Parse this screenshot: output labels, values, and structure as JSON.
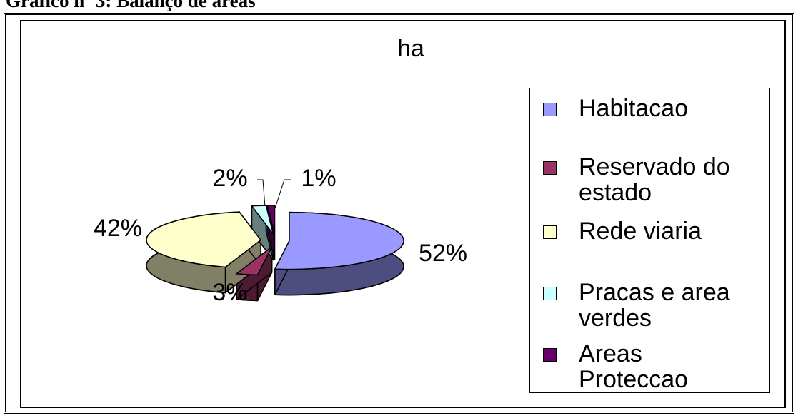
{
  "caption": "Gráfico nº 3: Balanço de áreas",
  "chart_data": {
    "type": "pie",
    "title": "ha",
    "categories": [
      "Habitacao",
      "Reservado do estado",
      "Rede viaria",
      "Pracas e area verdes",
      "Areas Proteccao"
    ],
    "values": [
      52,
      3,
      42,
      2,
      1
    ],
    "value_labels": [
      "52%",
      "3%",
      "42%",
      "2%",
      "1%"
    ],
    "colors": [
      "#9999ff",
      "#993366",
      "#ffffcc",
      "#ccffff",
      "#660066"
    ],
    "legend": "right"
  }
}
